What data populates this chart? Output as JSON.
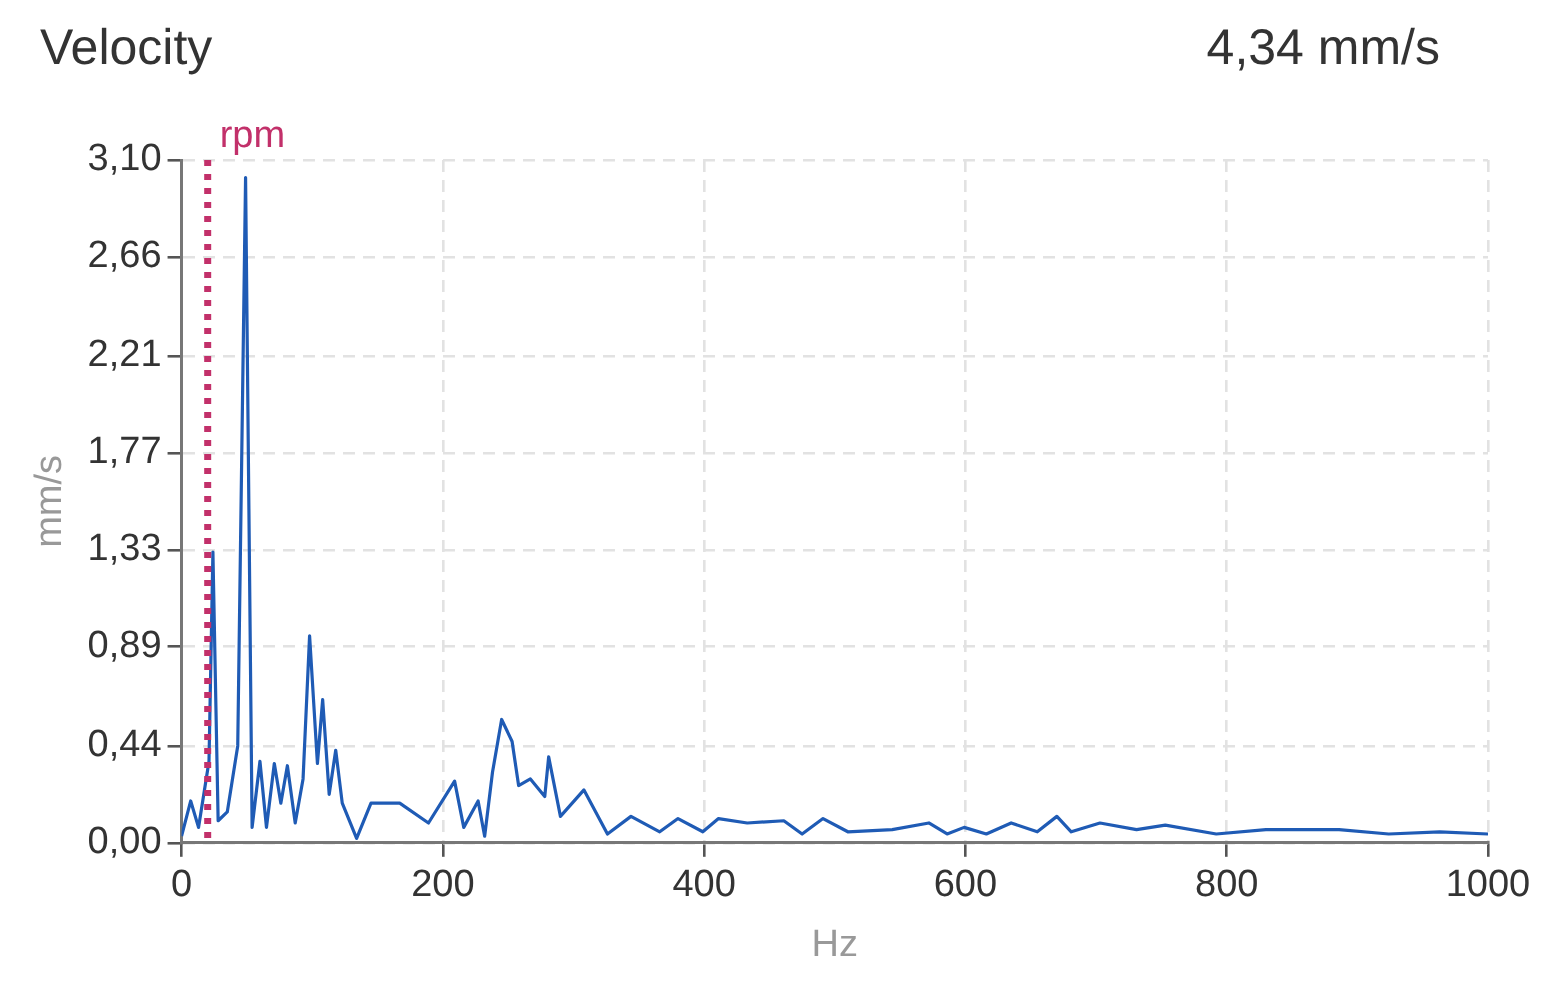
{
  "chart_data": {
    "type": "line",
    "title": "Velocity",
    "subtitle": "4,34 mm/s",
    "xlabel": "Hz",
    "ylabel": "mm/s",
    "series": [
      {
        "color": "#1f5bb5",
        "x": [
          0,
          7,
          13,
          21,
          24,
          28,
          35,
          43,
          49,
          54,
          60,
          65,
          71,
          76,
          81,
          87,
          93,
          98,
          104,
          108,
          113,
          118,
          123,
          134,
          145,
          167,
          189,
          209,
          216,
          227,
          232,
          238,
          245,
          253,
          258,
          267,
          278,
          281,
          290,
          308,
          326,
          344,
          366,
          380,
          399,
          411,
          433,
          461,
          475,
          491,
          510,
          544,
          572,
          586,
          599,
          616,
          635,
          655,
          670,
          681,
          703,
          731,
          753,
          792,
          830,
          886,
          924,
          963,
          1000
        ],
        "values": [
          0.03,
          0.19,
          0.07,
          0.37,
          1.32,
          0.1,
          0.14,
          0.44,
          3.02,
          0.07,
          0.37,
          0.07,
          0.36,
          0.18,
          0.35,
          0.09,
          0.29,
          0.94,
          0.36,
          0.65,
          0.22,
          0.42,
          0.18,
          0.02,
          0.18,
          0.18,
          0.09,
          0.28,
          0.07,
          0.19,
          0.03,
          0.32,
          0.56,
          0.46,
          0.26,
          0.29,
          0.21,
          0.39,
          0.12,
          0.24,
          0.04,
          0.12,
          0.05,
          0.11,
          0.05,
          0.11,
          0.09,
          0.1,
          0.04,
          0.11,
          0.05,
          0.06,
          0.09,
          0.04,
          0.07,
          0.04,
          0.09,
          0.05,
          0.12,
          0.05,
          0.09,
          0.06,
          0.08,
          0.04,
          0.06,
          0.06,
          0.04,
          0.05,
          0.04
        ]
      }
    ],
    "xlim": [
      0,
      1000
    ],
    "xticks": [
      0,
      200,
      400,
      600,
      800,
      1000
    ],
    "ylim": [
      0,
      3.1
    ],
    "yticks": [
      {
        "value": 0,
        "label": "0,00"
      },
      {
        "value": 0.44,
        "label": "0,44"
      },
      {
        "value": 0.89,
        "label": "0,89"
      },
      {
        "value": 1.33,
        "label": "1,33"
      },
      {
        "value": 1.77,
        "label": "1,77"
      },
      {
        "value": 2.21,
        "label": "2,21"
      },
      {
        "value": 2.66,
        "label": "2,66"
      },
      {
        "value": 3.1,
        "label": "3,10"
      }
    ],
    "ref_lines": [
      {
        "axis": "x",
        "value": 20,
        "label": "rpm",
        "color": "#c2306a",
        "line_style": "dotted"
      }
    ],
    "grid": true,
    "legend": false,
    "marker": "none",
    "line_style": "solid"
  }
}
